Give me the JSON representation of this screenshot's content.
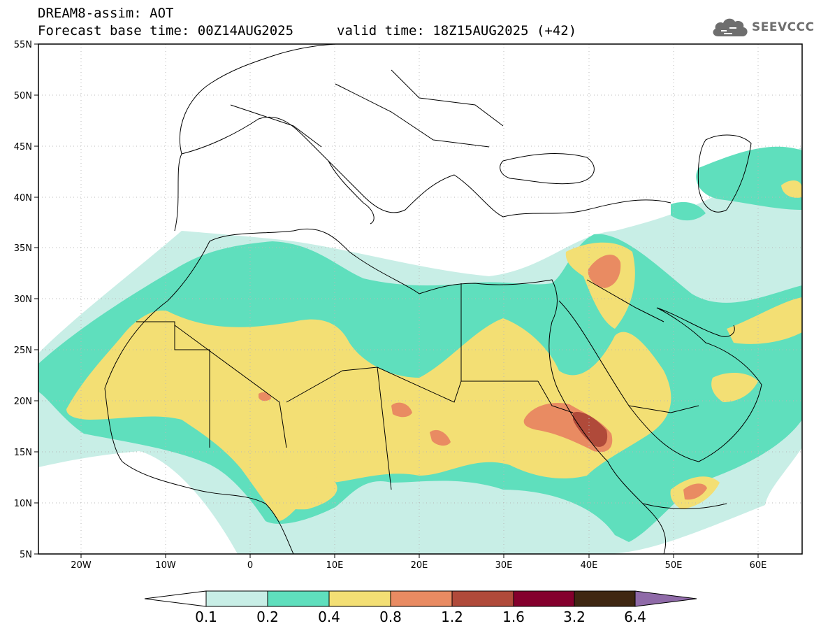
{
  "header": {
    "line1": "DREAM8-assim: AOT",
    "line2": "Forecast base time: 00Z14AUG2025",
    "valid": "valid time: 18Z15AUG2025 (+42)"
  },
  "logo": {
    "text": "SEEVCCC",
    "icon": "cloud-icon",
    "color": "#6e6e6e"
  },
  "map_data": {
    "lon_range": [
      -25,
      65
    ],
    "lat_range": [
      5,
      55
    ],
    "lon_ticks": [
      "20W",
      "10W",
      "0",
      "10E",
      "20E",
      "30E",
      "40E",
      "50E",
      "60E"
    ],
    "lat_ticks": [
      "55N",
      "50N",
      "45N",
      "40N",
      "35N",
      "30N",
      "25N",
      "20N",
      "15N",
      "10N",
      "5N"
    ],
    "grid": "dotted"
  },
  "legend": {
    "labels": [
      "0.1",
      "0.2",
      "0.4",
      "0.8",
      "1.2",
      "1.6",
      "3.2",
      "6.4"
    ],
    "colors": [
      "#ffffff",
      "#c8eee6",
      "#5fdfbd",
      "#f3df74",
      "#e98b62",
      "#b04a3a",
      "#84002d",
      "#3f2712",
      "#8f6aa8"
    ]
  }
}
